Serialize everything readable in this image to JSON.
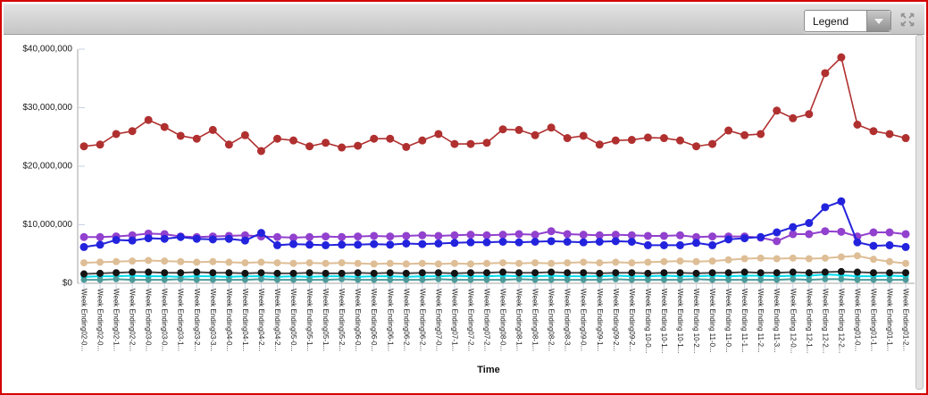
{
  "window": {
    "border_color": "#d40000",
    "toolbar_color": "#d2d2d2"
  },
  "toolbar": {
    "legend_dropdown": {
      "value": "Legend",
      "chevron_icon": "chevron-down-icon"
    },
    "expand_icon": "expand-arrows-icon",
    "icon_color": "#909090"
  },
  "chart_data": {
    "type": "line",
    "title": "",
    "xlabel": "Time",
    "ylabel": "",
    "ylim": [
      0,
      40000000
    ],
    "grid": false,
    "legend_position": "collapsed-dropdown",
    "y_tick_labels": [
      "$40,000,000",
      "$30,000,000",
      "$20,000,000",
      "$10,000,000",
      "$0"
    ],
    "y_tick_values_millions": [
      40,
      30,
      20,
      10,
      0
    ],
    "values_unit": "USD millions",
    "categories": [
      "Week Ending02-0...",
      "Week Ending02-0...",
      "Week Ending02-1...",
      "Week Ending02-2...",
      "Week Ending03-0...",
      "Week Ending03-0...",
      "Week Ending03-1...",
      "Week Ending03-2...",
      "Week Ending03-3...",
      "Week Ending04-0...",
      "Week Ending04-1...",
      "Week Ending04-2...",
      "Week Ending04-2...",
      "Week Ending05-0...",
      "Week Ending05-1...",
      "Week Ending05-1...",
      "Week Ending05-2...",
      "Week Ending06-0...",
      "Week Ending06-0...",
      "Week Ending06-1...",
      "Week Ending06-2...",
      "Week Ending06-2...",
      "Week Ending07-0...",
      "Week Ending07-1...",
      "Week Ending07-2...",
      "Week Ending07-2...",
      "Week Ending08-0...",
      "Week Ending08-1...",
      "Week Ending08-1...",
      "Week Ending08-2...",
      "Week Ending08-3...",
      "Week Ending09-0...",
      "Week Ending09-1...",
      "Week Ending09-2...",
      "Week Ending09-2...",
      "Week Ending 10-0...",
      "Week Ending 10-1...",
      "Week Ending 10-1...",
      "Week Ending 10-2...",
      "Week Ending 11-0...",
      "Week Ending 11-0...",
      "Week Ending 11-1...",
      "Week Ending 11-2...",
      "Week Ending 11-3...",
      "Week Ending 12-0...",
      "Week Ending 12-1...",
      "Week Ending 12-2...",
      "Week Ending 12-2...",
      "Week Ending01-0...",
      "Week Ending01-1...",
      "Week Ending01-1...",
      "Week Ending01-2..."
    ],
    "series": [
      {
        "name": "dark-red",
        "color": "#b03030",
        "values": [
          23.4,
          23.7,
          25.5,
          26.0,
          27.9,
          26.7,
          25.2,
          24.7,
          26.2,
          23.7,
          25.3,
          22.6,
          24.7,
          24.4,
          23.4,
          24.0,
          23.2,
          23.5,
          24.7,
          24.7,
          23.3,
          24.4,
          25.5,
          23.8,
          23.8,
          24.0,
          26.3,
          26.2,
          25.3,
          26.6,
          24.8,
          25.2,
          23.7,
          24.4,
          24.5,
          24.9,
          24.8,
          24.4,
          23.4,
          23.8,
          26.1,
          25.3,
          25.5,
          29.5,
          28.2,
          28.9,
          35.9,
          38.6,
          27.1,
          26.0,
          25.5,
          24.8
        ]
      },
      {
        "name": "blue",
        "color": "#2323dd",
        "values": [
          6.2,
          6.6,
          7.4,
          7.3,
          7.7,
          7.6,
          7.9,
          7.6,
          7.5,
          7.6,
          7.3,
          8.6,
          6.5,
          6.7,
          6.6,
          6.5,
          6.6,
          6.6,
          6.7,
          6.6,
          6.8,
          6.7,
          6.8,
          6.9,
          7.0,
          7.0,
          7.1,
          7.0,
          7.1,
          7.2,
          7.1,
          7.0,
          7.1,
          7.2,
          7.1,
          6.5,
          6.5,
          6.5,
          6.9,
          6.5,
          7.5,
          7.7,
          7.9,
          8.7,
          9.6,
          10.3,
          13.0,
          14.0,
          7.0,
          6.4,
          6.5,
          6.2
        ]
      },
      {
        "name": "purple",
        "color": "#9241ce",
        "values": [
          7.9,
          7.9,
          8.0,
          8.2,
          8.5,
          8.4,
          8.0,
          7.9,
          8.0,
          8.1,
          8.2,
          8.0,
          7.9,
          7.8,
          7.9,
          8.0,
          7.9,
          8.0,
          8.1,
          8.0,
          8.1,
          8.2,
          8.1,
          8.2,
          8.3,
          8.2,
          8.3,
          8.4,
          8.3,
          8.9,
          8.4,
          8.3,
          8.2,
          8.3,
          8.2,
          8.1,
          8.1,
          8.2,
          7.9,
          8.0,
          8.0,
          8.0,
          7.8,
          7.2,
          8.4,
          8.4,
          8.9,
          8.8,
          8.0,
          8.7,
          8.7,
          8.4
        ]
      },
      {
        "name": "tan",
        "color": "#debe96",
        "values": [
          3.5,
          3.6,
          3.7,
          3.8,
          3.9,
          3.8,
          3.7,
          3.6,
          3.7,
          3.6,
          3.5,
          3.6,
          3.5,
          3.4,
          3.5,
          3.4,
          3.5,
          3.4,
          3.3,
          3.4,
          3.3,
          3.4,
          3.3,
          3.4,
          3.3,
          3.4,
          3.5,
          3.4,
          3.5,
          3.4,
          3.5,
          3.6,
          3.5,
          3.6,
          3.5,
          3.6,
          3.7,
          3.8,
          3.7,
          3.8,
          4.0,
          4.2,
          4.3,
          4.2,
          4.3,
          4.2,
          4.3,
          4.5,
          4.7,
          4.1,
          3.7,
          3.4
        ]
      },
      {
        "name": "black",
        "color": "#141414",
        "values": [
          1.6,
          1.7,
          1.8,
          1.9,
          1.9,
          1.8,
          1.8,
          1.9,
          1.8,
          1.8,
          1.7,
          1.8,
          1.7,
          1.7,
          1.8,
          1.7,
          1.7,
          1.8,
          1.7,
          1.8,
          1.7,
          1.8,
          1.8,
          1.7,
          1.8,
          1.8,
          1.9,
          1.8,
          1.8,
          1.9,
          1.8,
          1.8,
          1.7,
          1.8,
          1.8,
          1.7,
          1.8,
          1.8,
          1.7,
          1.8,
          1.8,
          1.9,
          1.8,
          1.8,
          1.9,
          1.8,
          1.9,
          2.0,
          1.9,
          1.8,
          1.8,
          1.8
        ]
      },
      {
        "name": "cyan",
        "color": "#00dcec",
        "values": [
          1.1,
          1.2,
          1.2,
          1.3,
          1.2,
          1.2,
          1.1,
          1.2,
          1.2,
          1.1,
          1.2,
          1.2,
          1.1,
          1.2,
          1.1,
          1.2,
          1.2,
          1.1,
          1.2,
          1.2,
          1.1,
          1.2,
          1.2,
          1.3,
          1.2,
          1.2,
          1.3,
          1.2,
          1.2,
          1.3,
          1.2,
          1.2,
          1.2,
          1.3,
          1.2,
          1.2,
          1.3,
          1.2,
          1.2,
          1.3,
          1.2,
          1.3,
          1.3,
          1.2,
          1.3,
          1.3,
          1.5,
          1.4,
          1.2,
          1.2,
          1.3,
          1.2
        ]
      },
      {
        "name": "teal",
        "color": "#4e9b9b",
        "values": [
          0.6,
          0.6,
          0.7,
          0.6,
          0.6,
          0.6,
          0.7,
          0.6,
          0.6,
          0.6,
          0.6,
          0.7,
          0.6,
          0.6,
          0.6,
          0.6,
          0.7,
          0.6,
          0.6,
          0.6,
          0.6,
          0.6,
          0.7,
          0.6,
          0.6,
          0.6,
          0.6,
          0.7,
          0.6,
          0.6,
          0.6,
          0.6,
          0.6,
          0.7,
          0.6,
          0.6,
          0.6,
          0.6,
          0.7,
          0.6,
          0.6,
          0.6,
          0.6,
          0.6,
          0.7,
          0.6,
          0.7,
          0.7,
          0.6,
          0.6,
          0.6,
          0.6
        ]
      }
    ]
  }
}
